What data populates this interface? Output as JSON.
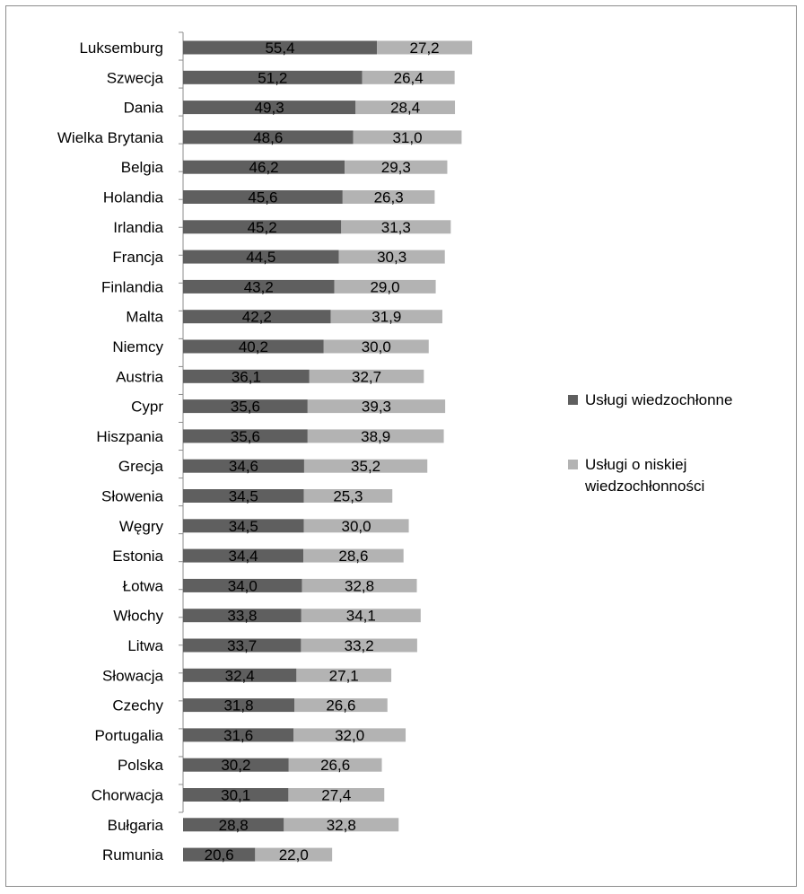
{
  "chart_data": {
    "type": "bar",
    "orientation": "horizontal",
    "stacked": true,
    "categories": [
      "Luksemburg",
      "Szwecja",
      "Dania",
      "Wielka Brytania",
      "Belgia",
      "Holandia",
      "Irlandia",
      "Francja",
      "Finlandia",
      "Malta",
      "Niemcy",
      "Austria",
      "Cypr",
      "Hiszpania",
      "Grecja",
      "Słowenia",
      "Węgry",
      "Estonia",
      "Łotwa",
      "Włochy",
      "Litwa",
      "Słowacja",
      "Czechy",
      "Portugalia",
      "Polska",
      "Chorwacja",
      "Bułgaria",
      "Rumunia"
    ],
    "series": [
      {
        "name": "Usługi wiedzochłonne",
        "color": "#5f5f5f",
        "values": [
          55.4,
          51.2,
          49.3,
          48.6,
          46.2,
          45.6,
          45.2,
          44.5,
          43.2,
          42.2,
          40.2,
          36.1,
          35.6,
          35.6,
          34.6,
          34.5,
          34.5,
          34.4,
          34.0,
          33.8,
          33.7,
          32.4,
          31.8,
          31.6,
          30.2,
          30.1,
          28.8,
          20.6
        ],
        "labels": [
          "55,4",
          "51,2",
          "49,3",
          "48,6",
          "46,2",
          "45,6",
          "45,2",
          "44,5",
          "43,2",
          "42,2",
          "40,2",
          "36,1",
          "35,6",
          "35,6",
          "34,6",
          "34,5",
          "34,5",
          "34,4",
          "34,0",
          "33,8",
          "33,7",
          "32,4",
          "31,8",
          "31,6",
          "30,2",
          "30,1",
          "28,8",
          "20,6"
        ]
      },
      {
        "name": "Usługi o niskiej wiedzochłonności",
        "color": "#b3b3b3",
        "values": [
          27.2,
          26.4,
          28.4,
          31.0,
          29.3,
          26.3,
          31.3,
          30.3,
          29.0,
          31.9,
          30.0,
          32.7,
          39.3,
          38.9,
          35.2,
          25.3,
          30.0,
          28.6,
          32.8,
          34.1,
          33.2,
          27.1,
          26.6,
          32.0,
          26.6,
          27.4,
          32.8,
          22.0
        ],
        "labels": [
          "27,2",
          "26,4",
          "28,4",
          "31,0",
          "29,3",
          "26,3",
          "31,3",
          "30,3",
          "29,0",
          "31,9",
          "30,0",
          "32,7",
          "39,3",
          "38,9",
          "35,2",
          "25,3",
          "30,0",
          "28,6",
          "32,8",
          "34,1",
          "33,2",
          "27,1",
          "26,6",
          "32,0",
          "26,6",
          "27,4",
          "32,8",
          "22,0"
        ]
      }
    ],
    "legend": {
      "position": "right",
      "items": [
        {
          "lines": [
            "Usługi wiedzochłonne"
          ],
          "color": "#5f5f5f"
        },
        {
          "lines": [
            "Usługi o niskiej",
            "wiedzochłonności"
          ],
          "color": "#b3b3b3"
        }
      ]
    },
    "xlim": [
      0,
      100
    ],
    "grid": false,
    "title": "",
    "xlabel": "",
    "ylabel": ""
  }
}
